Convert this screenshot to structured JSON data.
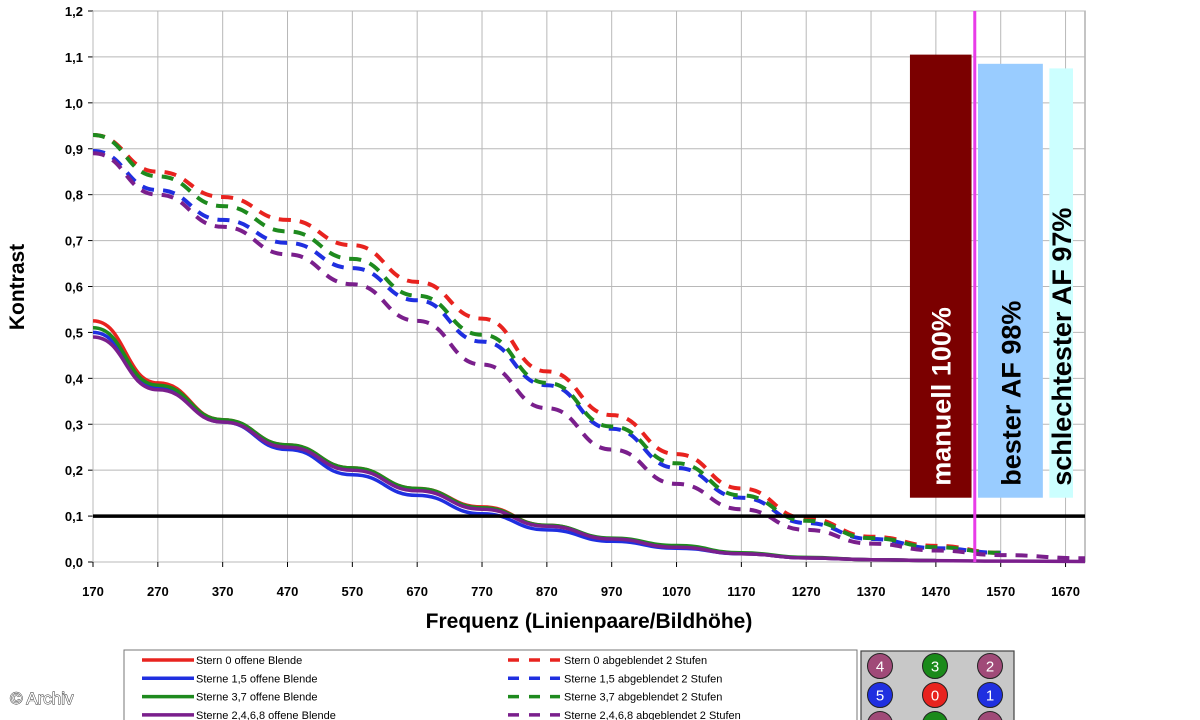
{
  "chart_data": {
    "type": "line",
    "title": "",
    "xlabel": "Frequenz (Linienpaare/Bildhöhe)",
    "ylabel": "Kontrast",
    "xlim": [
      170,
      1700
    ],
    "ylim": [
      0,
      1.2
    ],
    "x_ticks": [
      "170",
      "270",
      "370",
      "470",
      "570",
      "670",
      "770",
      "870",
      "970",
      "1070",
      "1170",
      "1270",
      "1370",
      "1470",
      "1570",
      "1670"
    ],
    "y_ticks": [
      "0,0",
      "0,1",
      "0,2",
      "0,3",
      "0,4",
      "0,5",
      "0,6",
      "0,7",
      "0,8",
      "0,9",
      "1,0",
      "1,1",
      "1,2"
    ],
    "grid": true,
    "threshold_line": 0.1,
    "vertical_marker": 1530,
    "series": [
      {
        "name": "Stern 0 offene Blende",
        "color": "#e8231f",
        "style": "solid",
        "x": [
          170,
          270,
          370,
          470,
          570,
          670,
          770,
          870,
          970,
          1070,
          1170,
          1270,
          1370,
          1470
        ],
        "y": [
          0.525,
          0.39,
          0.31,
          0.255,
          0.205,
          0.16,
          0.12,
          0.08,
          0.05,
          0.032,
          0.018,
          0.009,
          0.005,
          0.003
        ]
      },
      {
        "name": "Sterne 1,5 offene Blende",
        "color": "#1f2fe0",
        "style": "solid",
        "x": [
          170,
          270,
          370,
          470,
          570,
          670,
          770,
          870,
          970,
          1070,
          1170,
          1270,
          1370,
          1470
        ],
        "y": [
          0.5,
          0.38,
          0.305,
          0.245,
          0.19,
          0.145,
          0.105,
          0.07,
          0.045,
          0.03,
          0.018,
          0.009,
          0.005,
          0.003
        ]
      },
      {
        "name": "Sterne 3,7 offene Blende",
        "color": "#1e8a1e",
        "style": "solid",
        "x": [
          170,
          270,
          370,
          470,
          570,
          670,
          770,
          870,
          970,
          1070,
          1170,
          1270,
          1370,
          1470
        ],
        "y": [
          0.51,
          0.385,
          0.31,
          0.255,
          0.205,
          0.16,
          0.118,
          0.08,
          0.052,
          0.036,
          0.02,
          0.01,
          0.005,
          0.003
        ]
      },
      {
        "name": "Sterne 2,4,6,8 offene Blende",
        "color": "#7a1f8c",
        "style": "solid",
        "x": [
          170,
          270,
          370,
          470,
          570,
          670,
          770,
          870,
          970,
          1070,
          1170,
          1270,
          1370,
          1470,
          1570,
          1700
        ],
        "y": [
          0.49,
          0.375,
          0.305,
          0.25,
          0.2,
          0.155,
          0.115,
          0.078,
          0.05,
          0.032,
          0.018,
          0.009,
          0.005,
          0.003,
          0.002,
          0.001
        ]
      },
      {
        "name": "Stern 0 abgeblendet 2 Stufen",
        "color": "#e8231f",
        "style": "dashed",
        "x": [
          170,
          270,
          370,
          470,
          570,
          670,
          770,
          870,
          970,
          1070,
          1170,
          1270,
          1370,
          1470,
          1570
        ],
        "y": [
          0.93,
          0.85,
          0.795,
          0.745,
          0.69,
          0.61,
          0.53,
          0.415,
          0.32,
          0.235,
          0.16,
          0.095,
          0.055,
          0.035,
          0.02
        ]
      },
      {
        "name": "Sterne 1,5 abgeblendet 2 Stufen",
        "color": "#1f2fe0",
        "style": "dashed",
        "x": [
          170,
          270,
          370,
          470,
          570,
          670,
          770,
          870,
          970,
          1070,
          1170,
          1270,
          1370,
          1470,
          1570
        ],
        "y": [
          0.895,
          0.81,
          0.745,
          0.695,
          0.64,
          0.57,
          0.48,
          0.385,
          0.29,
          0.205,
          0.14,
          0.085,
          0.05,
          0.03,
          0.02
        ]
      },
      {
        "name": "Sterne 3,7 abgeblendet 2 Stufen",
        "color": "#1e8a1e",
        "style": "dashed",
        "x": [
          170,
          270,
          370,
          470,
          570,
          670,
          770,
          870,
          970,
          1070,
          1170,
          1270,
          1370,
          1470,
          1570
        ],
        "y": [
          0.93,
          0.84,
          0.775,
          0.72,
          0.66,
          0.58,
          0.495,
          0.39,
          0.295,
          0.215,
          0.145,
          0.09,
          0.052,
          0.032,
          0.02
        ]
      },
      {
        "name": "Sterne 2,4,6,8 abgeblendet 2 Stufen",
        "color": "#7a1f8c",
        "style": "dashed",
        "x": [
          170,
          270,
          370,
          470,
          570,
          670,
          770,
          870,
          970,
          1070,
          1170,
          1270,
          1370,
          1470,
          1570,
          1700
        ],
        "y": [
          0.89,
          0.8,
          0.73,
          0.67,
          0.605,
          0.525,
          0.43,
          0.335,
          0.245,
          0.17,
          0.115,
          0.07,
          0.04,
          0.025,
          0.015,
          0.008
        ]
      }
    ],
    "bars": [
      {
        "label": "manuell 100%",
        "value": 1.105,
        "x_from": 1430,
        "x_to": 1525,
        "color": "#7b0000",
        "text_color": "#ffffff"
      },
      {
        "label": "bester AF 98%",
        "value": 1.085,
        "x_from": 1535,
        "x_to": 1635,
        "color": "#99ccff",
        "text_color": "#000000"
      },
      {
        "label": "schlechtester AF 97%",
        "value": 1.075,
        "x_from": 1645,
        "x_to": 1745,
        "color": "#ccffff",
        "text_color": "#000000"
      }
    ],
    "bars_bottom": 0.14,
    "legend": {
      "placement": "bottom",
      "entries": [
        {
          "label": "Stern 0 offene Blende",
          "color": "#e8231f",
          "style": "solid"
        },
        {
          "label": "Sterne 1,5 offene Blende",
          "color": "#1f2fe0",
          "style": "solid"
        },
        {
          "label": "Sterne 3,7 offene Blende",
          "color": "#1e8a1e",
          "style": "solid"
        },
        {
          "label": "Sterne 2,4,6,8 offene Blende",
          "color": "#7a1f8c",
          "style": "solid"
        },
        {
          "label": "Stern 0 abgeblendet 2 Stufen",
          "color": "#e8231f",
          "style": "dashed"
        },
        {
          "label": "Sterne 1,5 abgeblendet 2 Stufen",
          "color": "#1f2fe0",
          "style": "dashed"
        },
        {
          "label": "Sterne 3,7 abgeblendet 2 Stufen",
          "color": "#1e8a1e",
          "style": "dashed"
        },
        {
          "label": "Sterne 2,4,6,8 abgeblendet 2 Stufen",
          "color": "#7a1f8c",
          "style": "dashed"
        }
      ]
    },
    "star_key": [
      {
        "label": "4",
        "color": "#a04a78"
      },
      {
        "label": "3",
        "color": "#1a8a1a"
      },
      {
        "label": "2",
        "color": "#a04a78"
      },
      {
        "label": "5",
        "color": "#1f2fe0"
      },
      {
        "label": "0",
        "color": "#e8231f"
      },
      {
        "label": "1",
        "color": "#1f2fe0"
      }
    ]
  },
  "watermark": "© Archiv"
}
